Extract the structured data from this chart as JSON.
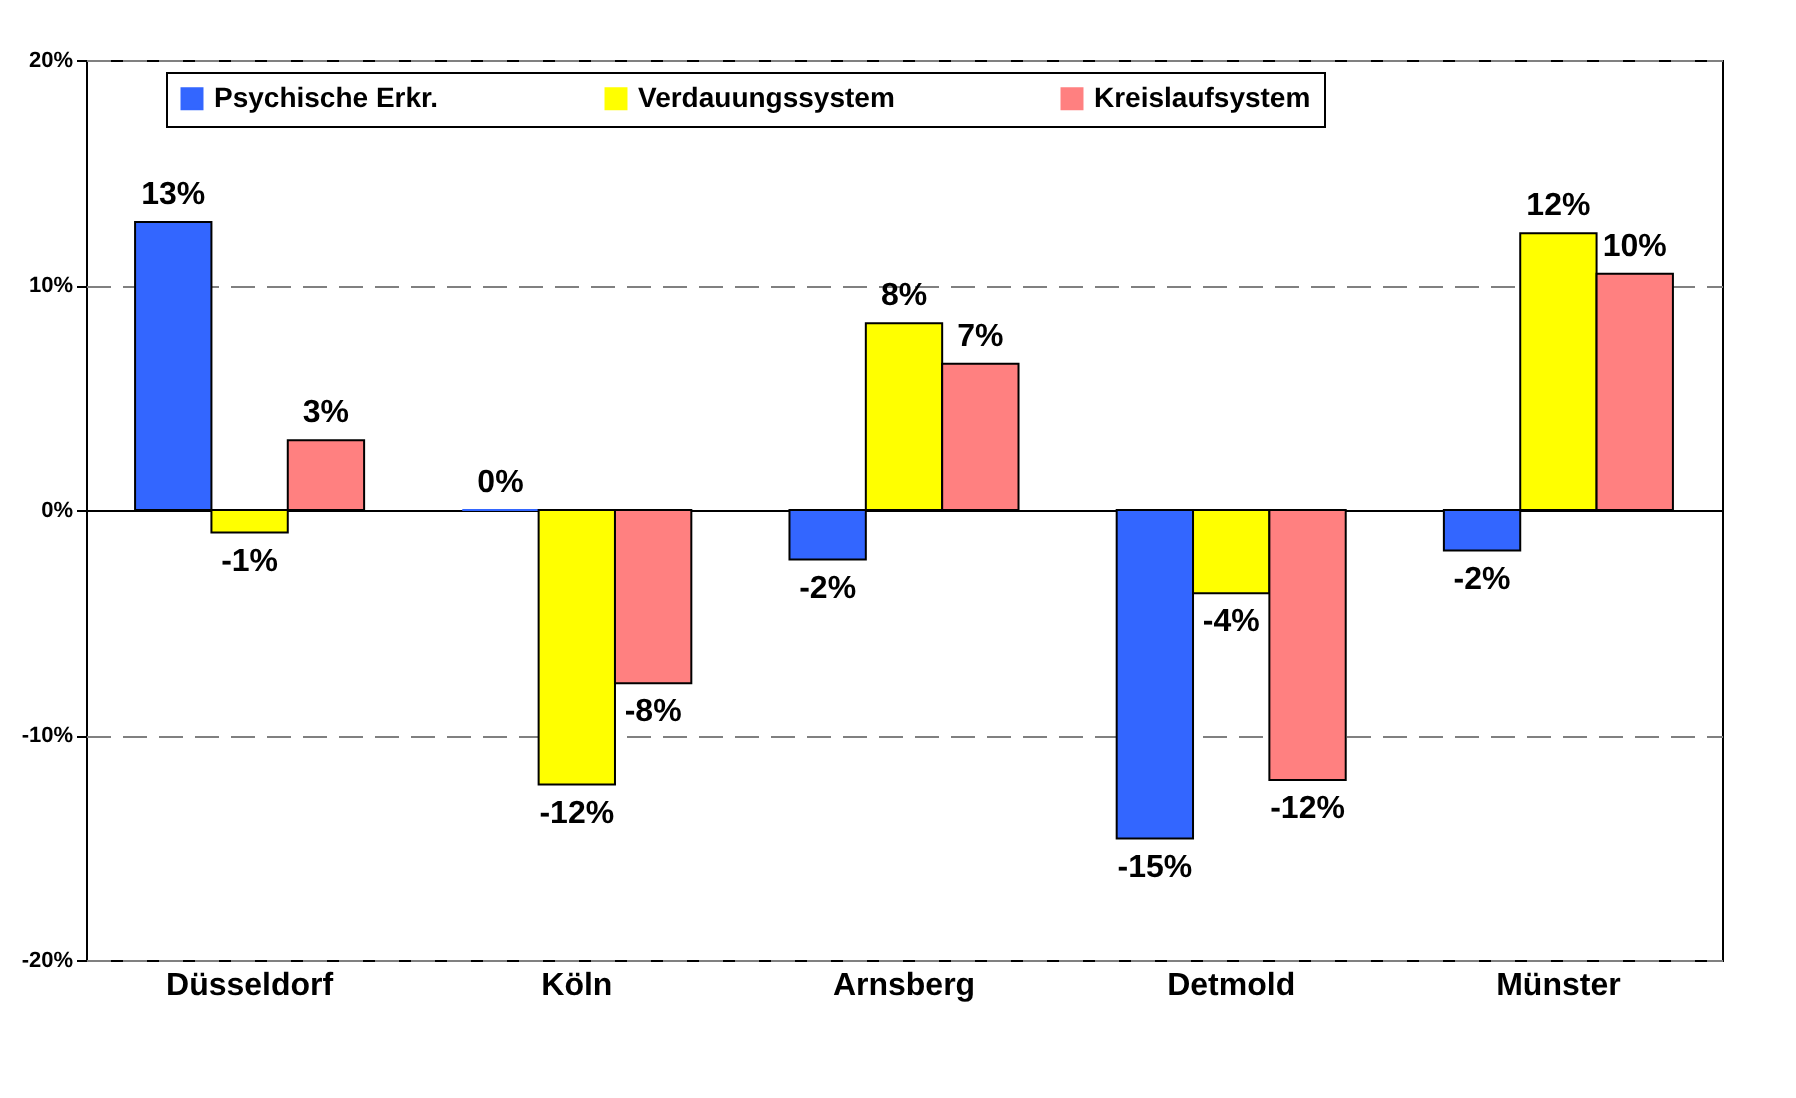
{
  "chart_data": {
    "type": "bar",
    "categories": [
      "Düsseldorf",
      "Köln",
      "Arnsberg",
      "Detmold",
      "Münster"
    ],
    "series": [
      {
        "name": "Psychische Erkr.",
        "color": "#3366ff",
        "values": [
          12.8,
          0,
          -2.2,
          -14.6,
          -1.8
        ],
        "value_labels": [
          "13%",
          "0%",
          "-2%",
          "-15%",
          "-2%"
        ]
      },
      {
        "name": "Verdauungssystem",
        "color": "#ffff00",
        "values": [
          -1.0,
          -12.2,
          8.3,
          -3.7,
          12.3
        ],
        "value_labels": [
          "-1%",
          "-12%",
          "8%",
          "-4%",
          "12%"
        ]
      },
      {
        "name": "Kreislaufsystem",
        "color": "#ff8080",
        "values": [
          3.1,
          -7.7,
          6.5,
          -12.0,
          10.5
        ],
        "value_labels": [
          "3%",
          "-8%",
          "7%",
          "-12%",
          "10%"
        ]
      }
    ],
    "ylim": [
      -20,
      20
    ],
    "yticks": [
      {
        "value": -20,
        "label": "-20%"
      },
      {
        "value": -10,
        "label": "-10%"
      },
      {
        "value": 0,
        "label": "0%"
      },
      {
        "value": 10,
        "label": "10%"
      },
      {
        "value": 20,
        "label": "20%"
      }
    ],
    "grid": "y",
    "legend": "top"
  }
}
